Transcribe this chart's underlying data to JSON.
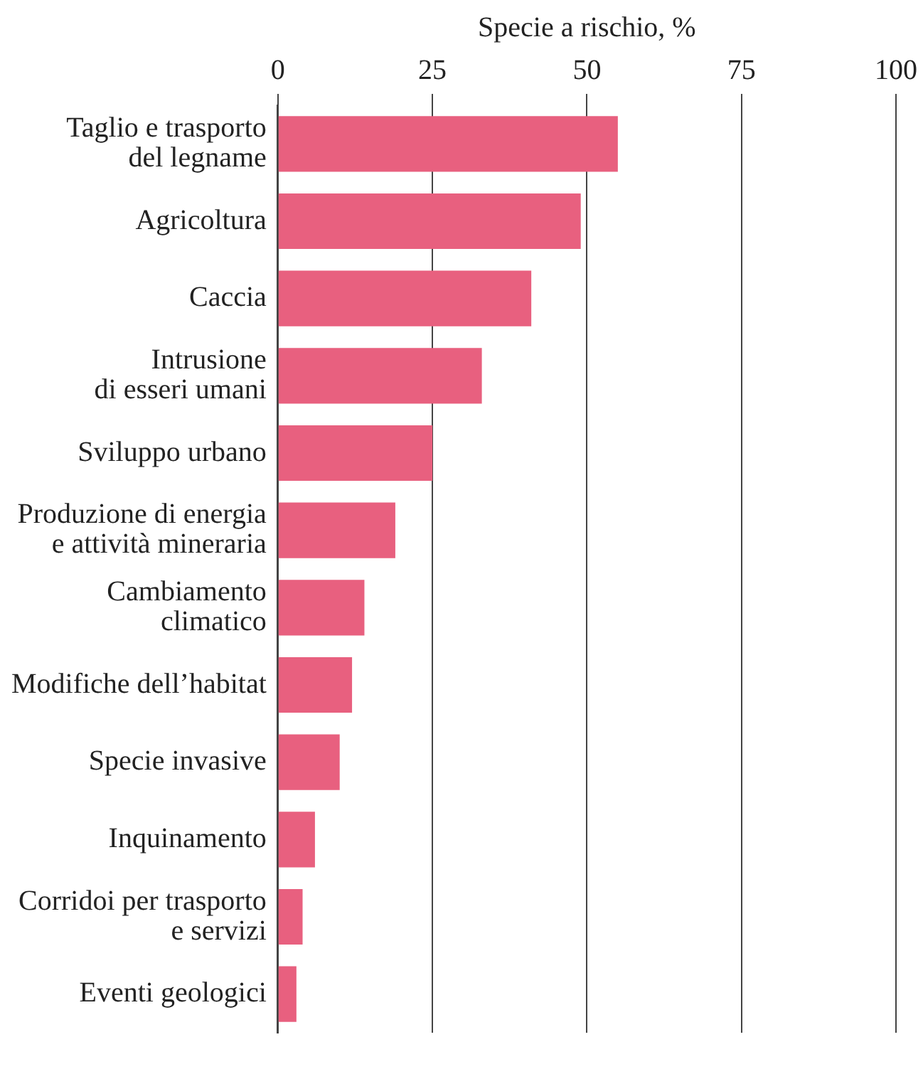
{
  "chart_data": {
    "type": "bar",
    "orientation": "horizontal",
    "xlabel": "Specie a rischio, %",
    "categories": [
      "Taglio e trasporto\ndel legname",
      "Agricoltura",
      "Caccia",
      "Intrusione\ndi esseri umani",
      "Sviluppo urbano",
      "Produzione di energia\ne attività mineraria",
      "Cambiamento\nclimatico",
      "Modifiche dell’habitat",
      "Specie invasive",
      "Inquinamento",
      "Corridoi per trasporto\ne servizi",
      "Eventi geologici"
    ],
    "values": [
      55,
      49,
      41,
      33,
      25,
      19,
      14,
      12,
      10,
      6,
      4,
      3
    ],
    "color": "#e8607f",
    "xlim": [
      0,
      100
    ],
    "xticks": [
      0,
      25,
      50,
      75,
      100
    ],
    "grid": "x",
    "legend": false
  }
}
